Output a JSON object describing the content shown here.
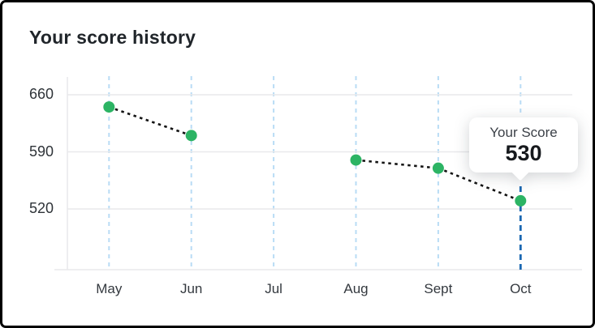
{
  "title": "Your score history",
  "tooltip": {
    "label": "Your Score",
    "value": "530"
  },
  "colors": {
    "point_green": "#2cb464",
    "month_gridline_blue": "#b9dcf5",
    "current_month_blue": "#1a68b2",
    "gridline_gray": "#e9e9eb",
    "connector_black": "#141414",
    "axis_text": "#2e3338",
    "title_text": "#20252a"
  },
  "chart_data": {
    "type": "line",
    "title": "Your score history",
    "categories": [
      "May",
      "Jun",
      "Jul",
      "Aug",
      "Sept",
      "Oct"
    ],
    "values": [
      645,
      610,
      null,
      580,
      570,
      530
    ],
    "yticks": [
      660,
      590,
      520
    ],
    "ylim": [
      445,
      682
    ],
    "xlabel": "",
    "ylabel": "",
    "legend": "none",
    "grid": "horizontal solid gray, vertical dashed light blue per month",
    "line_style": "dashed",
    "marker": "circle",
    "highlight": {
      "index": 5,
      "category": "Oct",
      "value": 530
    }
  }
}
